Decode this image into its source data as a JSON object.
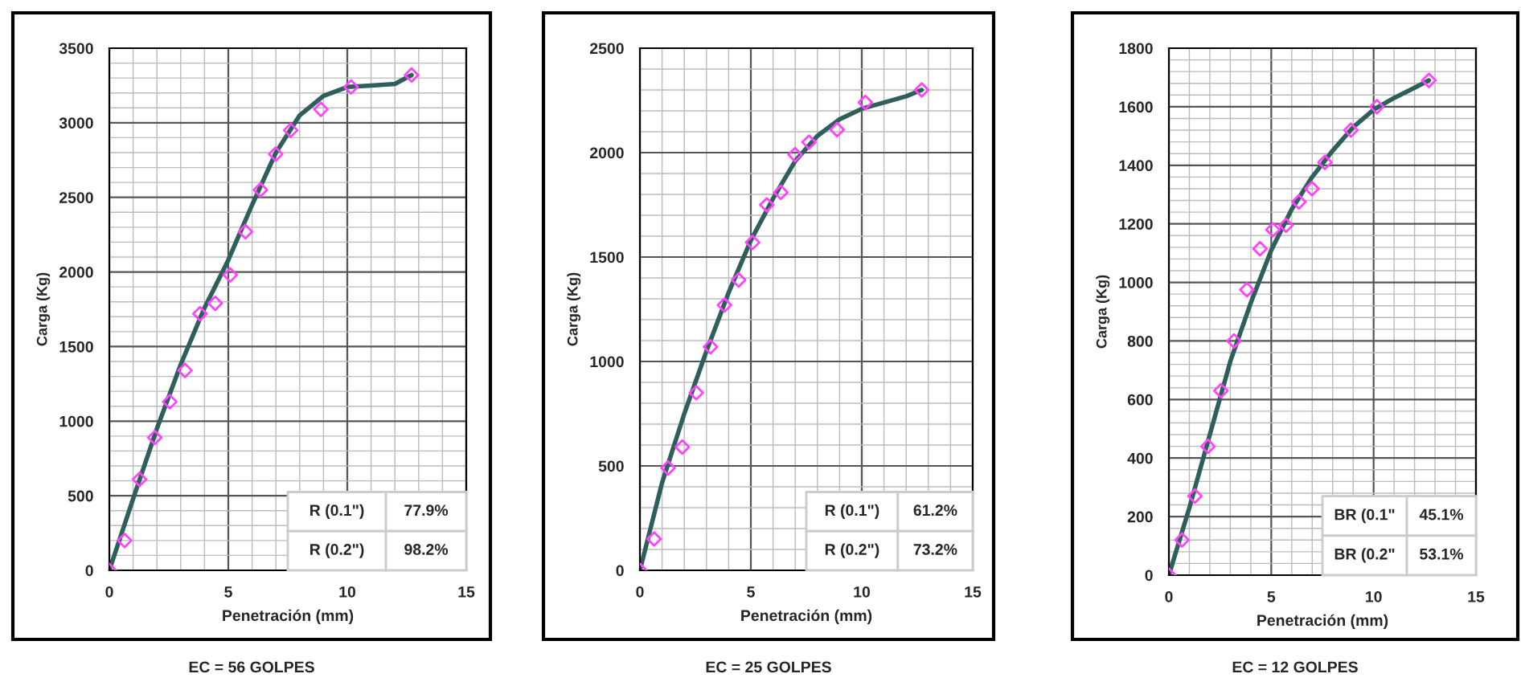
{
  "chart_data": [
    {
      "type": "scatter",
      "xlabel": "Penetración (mm)",
      "ylabel": "Carga (Kg)",
      "xlim": [
        0,
        15
      ],
      "xticks": [
        0,
        5,
        10,
        15
      ],
      "ylim": [
        0,
        3500
      ],
      "yticks": [
        0,
        500,
        1000,
        1500,
        2000,
        2500,
        3000,
        3500
      ],
      "grid": true,
      "series": [
        {
          "marker": "diamond",
          "color": "#ff44ff",
          "x": [
            0,
            0.64,
            1.27,
            1.91,
            2.54,
            3.18,
            3.81,
            4.45,
            5.08,
            5.72,
            6.35,
            6.99,
            7.62,
            8.89,
            10.16,
            12.7
          ],
          "values": [
            0,
            200,
            610,
            890,
            1130,
            1340,
            1720,
            1790,
            1980,
            2270,
            2550,
            2790,
            2950,
            3090,
            3240,
            3320
          ]
        },
        {
          "type": "line",
          "color": "#2f5f5a",
          "x": [
            0,
            1,
            2,
            3,
            4,
            5,
            6,
            7,
            8,
            9,
            10,
            11,
            12,
            12.7
          ],
          "values": [
            0,
            480,
            950,
            1380,
            1760,
            2080,
            2450,
            2800,
            3050,
            3180,
            3240,
            3250,
            3260,
            3320
          ]
        }
      ],
      "annotations": [
        "R (0.1\")",
        "77.9%",
        "R (0.2\")",
        "98.2%",
        "EC = 56 GOLPES"
      ]
    },
    {
      "type": "scatter",
      "xlabel": "Penetración (mm)",
      "ylabel": "Carga (Kg)",
      "xlim": [
        0,
        15
      ],
      "xticks": [
        0,
        5,
        10,
        15
      ],
      "ylim": [
        0,
        2500
      ],
      "yticks": [
        0,
        500,
        1000,
        1500,
        2000,
        2500
      ],
      "grid": true,
      "series": [
        {
          "marker": "diamond",
          "color": "#ff44ff",
          "x": [
            0,
            0.64,
            1.27,
            1.91,
            2.54,
            3.18,
            3.81,
            4.45,
            5.08,
            5.72,
            6.35,
            6.99,
            7.62,
            8.89,
            10.16,
            12.7
          ],
          "values": [
            0,
            150,
            490,
            590,
            850,
            1070,
            1270,
            1390,
            1570,
            1750,
            1810,
            1990,
            2050,
            2110,
            2240,
            2300
          ]
        },
        {
          "type": "line",
          "color": "#2f5f5a",
          "x": [
            0,
            1,
            2,
            3,
            4,
            5,
            6,
            7,
            8,
            9,
            10,
            11,
            12,
            12.7
          ],
          "values": [
            0,
            420,
            750,
            1050,
            1330,
            1580,
            1780,
            1960,
            2080,
            2160,
            2210,
            2240,
            2270,
            2300
          ]
        }
      ],
      "annotations": [
        "R (0.1\")",
        "61.2%",
        "R (0.2\")",
        "73.2%",
        "EC = 25 GOLPES"
      ]
    },
    {
      "type": "scatter",
      "xlabel": "Penetración (mm)",
      "ylabel": "Carga (Kg)",
      "xlim": [
        0,
        15
      ],
      "xticks": [
        0,
        5,
        10,
        15
      ],
      "ylim": [
        0,
        1800
      ],
      "yticks": [
        0,
        200,
        400,
        600,
        800,
        1000,
        1200,
        1400,
        1600,
        1800
      ],
      "grid": true,
      "series": [
        {
          "marker": "diamond",
          "color": "#ff44ff",
          "x": [
            0,
            0.64,
            1.27,
            1.91,
            2.54,
            3.18,
            3.81,
            4.45,
            5.08,
            5.72,
            6.35,
            6.99,
            7.62,
            8.89,
            10.16,
            12.7
          ],
          "values": [
            0,
            120,
            270,
            440,
            630,
            800,
            975,
            1115,
            1180,
            1195,
            1275,
            1320,
            1410,
            1520,
            1600,
            1690
          ]
        },
        {
          "type": "line",
          "color": "#2f5f5a",
          "x": [
            0,
            1,
            2,
            3,
            4,
            5,
            6,
            7,
            8,
            9,
            10,
            11,
            12,
            12.7
          ],
          "values": [
            0,
            230,
            480,
            730,
            930,
            1110,
            1250,
            1360,
            1450,
            1530,
            1590,
            1630,
            1665,
            1690
          ]
        }
      ],
      "annotations": [
        "BR (0.1\"",
        "45.1%",
        "BR (0.2\"",
        "53.1%",
        "EC = 12 GOLPES"
      ]
    }
  ]
}
